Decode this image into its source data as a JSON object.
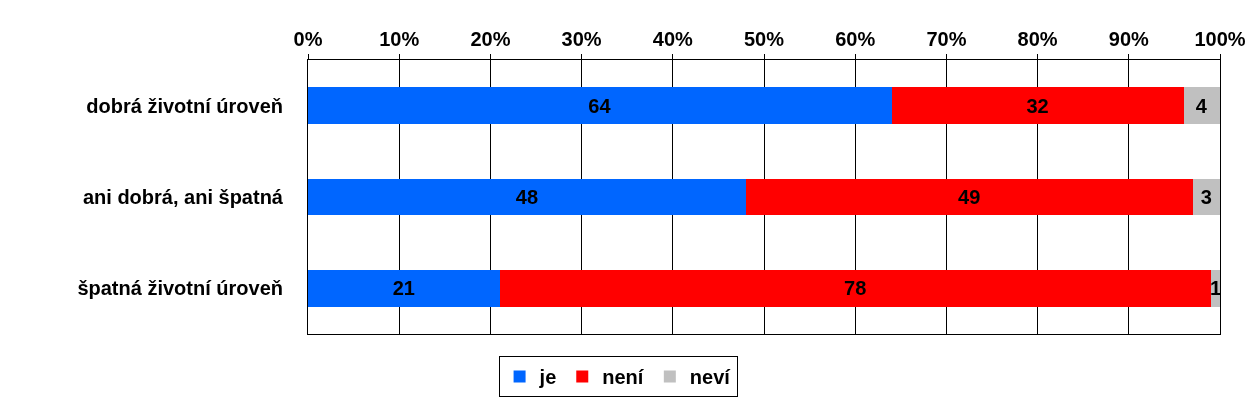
{
  "chart_data": {
    "type": "bar",
    "orientation": "horizontal",
    "stacked": true,
    "categories": [
      "dobrá životní úroveň",
      "ani dobrá, ani špatná",
      "špatná životní úroveň"
    ],
    "series": [
      {
        "name": "je",
        "color": "#0066ff",
        "values": [
          64,
          48,
          21
        ]
      },
      {
        "name": "není",
        "color": "#ff0000",
        "values": [
          32,
          49,
          78
        ]
      },
      {
        "name": "neví",
        "color": "#c0c0c0",
        "values": [
          4,
          3,
          1
        ]
      }
    ],
    "xlim": [
      0,
      100
    ],
    "xticks": [
      {
        "value": 0,
        "label": "0%"
      },
      {
        "value": 10,
        "label": "10%"
      },
      {
        "value": 20,
        "label": "20%"
      },
      {
        "value": 30,
        "label": "30%"
      },
      {
        "value": 40,
        "label": "40%"
      },
      {
        "value": 50,
        "label": "50%"
      },
      {
        "value": 60,
        "label": "60%"
      },
      {
        "value": 70,
        "label": "70%"
      },
      {
        "value": 80,
        "label": "80%"
      },
      {
        "value": 90,
        "label": "90%"
      },
      {
        "value": 100,
        "label": "100%"
      }
    ],
    "grid": "x",
    "legend": "bottom",
    "data_labels": true
  }
}
